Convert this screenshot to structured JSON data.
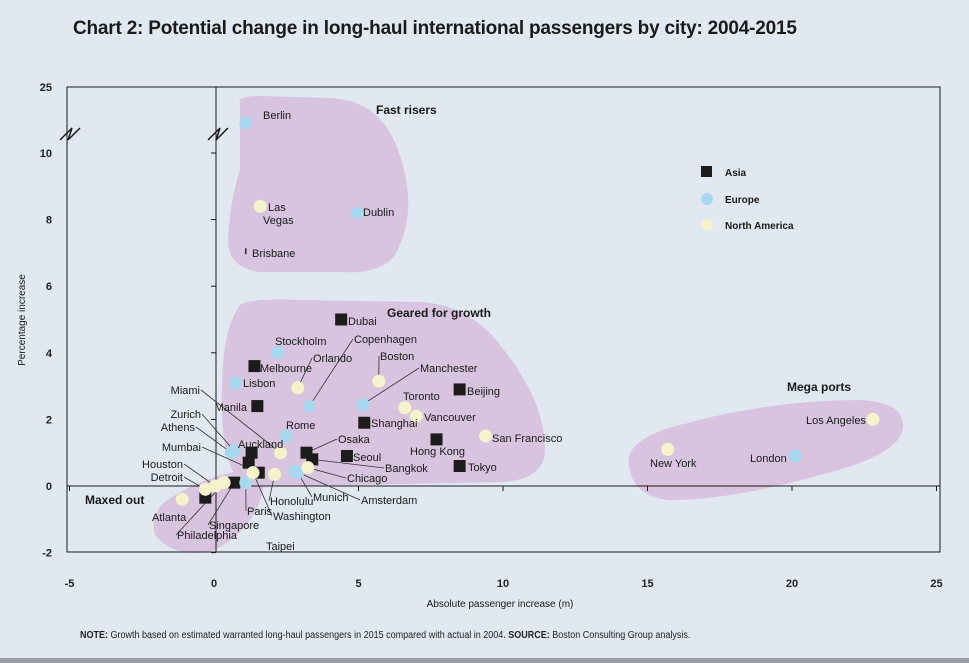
{
  "title": "Chart 2: Potential change in long-haul international passengers by city: 2004-2015",
  "note": {
    "note_label": "NOTE:",
    "note_text": "Growth based on estimated warranted long-haul passengers in 2015 compared with actual in 2004.",
    "source_label": "SOURCE:",
    "source_text": "Boston Consulting Group analysis."
  },
  "chart_data": {
    "type": "scatter",
    "title": "Chart 2: Potential change in long-haul international passengers by city: 2004-2015",
    "xlabel": "Absolute passenger increase (m)",
    "ylabel": "Percentage increase",
    "xlim": [
      -5,
      25
    ],
    "ylim": [
      -2,
      25
    ],
    "y_axis_break": [
      10,
      25
    ],
    "x_ticks": [
      "-5",
      "0",
      "5",
      "10",
      "15",
      "20",
      "25"
    ],
    "y_ticks": [
      "25",
      "10",
      "8",
      "6",
      "4",
      "2",
      "0",
      "-2"
    ],
    "grid": false,
    "legend_position": "top-right",
    "colors": {
      "Asia": "#1e1b1c",
      "Europe": "#a8d8f0",
      "North America": "#f6f3cc",
      "cluster": "#d8c4df"
    },
    "series": [
      {
        "name": "Asia",
        "marker": "square",
        "points": [
          {
            "city": "Dubai",
            "x": 4.4,
            "y": 5.0
          },
          {
            "city": "Melbourne",
            "x": 1.4,
            "y": 3.6
          },
          {
            "city": "Manila",
            "x": 1.5,
            "y": 2.4
          },
          {
            "city": "Beijing",
            "x": 8.5,
            "y": 2.9
          },
          {
            "city": "Shanghai",
            "x": 5.2,
            "y": 1.9
          },
          {
            "city": "Hong Kong",
            "x": 7.7,
            "y": 1.4
          },
          {
            "city": "Tokyo",
            "x": 8.5,
            "y": 0.6
          },
          {
            "city": "Osaka",
            "x": 3.2,
            "y": 1.0
          },
          {
            "city": "Seoul",
            "x": 4.6,
            "y": 0.9
          },
          {
            "city": "Bangkok",
            "x": 3.4,
            "y": 0.8
          },
          {
            "city": "Auckland",
            "x": 1.3,
            "y": 1.0
          },
          {
            "city": "Taipei",
            "x": 1.2,
            "y": 0.7
          },
          {
            "city": "Mumbai",
            "x": 1.55,
            "y": 0.4
          },
          {
            "city": "Singapore",
            "x": 0.7,
            "y": 0.1
          },
          {
            "city": "",
            "x": -0.3,
            "y": -0.35
          },
          {
            "city": "Brisbane",
            "x": 1.1,
            "y": 7.05
          }
        ]
      },
      {
        "name": "Europe",
        "marker": "circle",
        "points": [
          {
            "city": "Berlin",
            "x": 1.1,
            "y": 16.8
          },
          {
            "city": "Dublin",
            "x": 4.95,
            "y": 8.2
          },
          {
            "city": "Stockholm",
            "x": 2.2,
            "y": 4.0
          },
          {
            "city": "Lisbon",
            "x": 0.75,
            "y": 3.1
          },
          {
            "city": "Copenhagen",
            "x": 3.3,
            "y": 2.4
          },
          {
            "city": "Manchester",
            "x": 5.15,
            "y": 2.45
          },
          {
            "city": "Rome",
            "x": 2.5,
            "y": 1.5
          },
          {
            "city": "Zurich",
            "x": 0.7,
            "y": 1.05
          },
          {
            "city": "Athens",
            "x": 0.6,
            "y": 1.0
          },
          {
            "city": "Munich",
            "x": 2.9,
            "y": 0.4
          },
          {
            "city": "Amsterdam",
            "x": 2.8,
            "y": 0.45
          },
          {
            "city": "Paris",
            "x": 1.1,
            "y": 0.1
          },
          {
            "city": "London",
            "x": 20.1,
            "y": 0.9
          }
        ]
      },
      {
        "name": "North America",
        "marker": "circle",
        "points": [
          {
            "city": "Las Vegas",
            "x": 1.6,
            "y": 8.4
          },
          {
            "city": "Orlando",
            "x": 2.9,
            "y": 2.95
          },
          {
            "city": "Boston",
            "x": 5.7,
            "y": 3.15
          },
          {
            "city": "Toronto",
            "x": 6.6,
            "y": 2.35
          },
          {
            "city": "Vancouver",
            "x": 7.0,
            "y": 2.1
          },
          {
            "city": "San Francisco",
            "x": 9.4,
            "y": 1.5
          },
          {
            "city": "Miami",
            "x": 2.3,
            "y": 1.0
          },
          {
            "city": "Chicago",
            "x": 3.25,
            "y": 0.55
          },
          {
            "city": "Honolulu",
            "x": 2.1,
            "y": 0.35
          },
          {
            "city": "Washington",
            "x": 1.35,
            "y": 0.4
          },
          {
            "city": "Philadelphia",
            "x": 0.35,
            "y": 0.1
          },
          {
            "city": "Houston",
            "x": 0.05,
            "y": 0.0
          },
          {
            "city": "Detroit",
            "x": -0.3,
            "y": -0.1
          },
          {
            "city": "Atlanta",
            "x": -1.1,
            "y": -0.4
          },
          {
            "city": "New York",
            "x": 15.7,
            "y": 1.1
          },
          {
            "city": "Los Angeles",
            "x": 22.8,
            "y": 2.0
          }
        ]
      }
    ],
    "clusters": [
      "Fast risers",
      "Geared for growth",
      "Mega ports",
      "Maxed out"
    ],
    "legend": [
      "Asia",
      "Europe",
      "North America"
    ]
  }
}
